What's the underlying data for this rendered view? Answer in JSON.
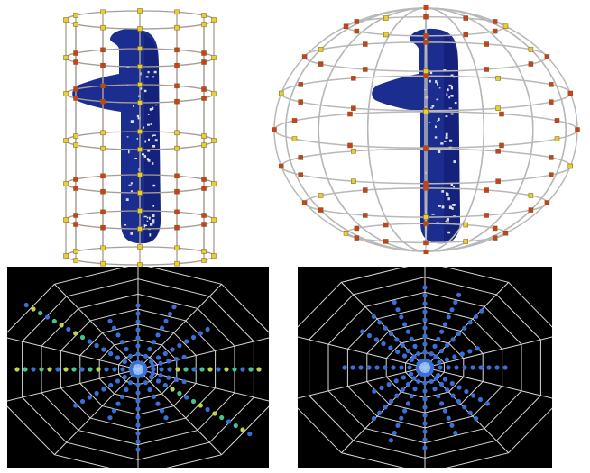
{
  "colors": {
    "figure_blue": "#1b2d8f",
    "figure_dark": "#0f1a6b",
    "cage_line": "#a89e96",
    "sphere_line": "#b8b8b8",
    "ctrl_point_yellow": "#e6cf2e",
    "ctrl_point_red": "#c8411c",
    "polar_bg": "#000000",
    "polar_grid": "#d8d8d8",
    "polar_point_blue": "#3a6fd8",
    "polar_point_green": "#45c48c",
    "polar_point_yellow": "#b8d84a"
  },
  "panels": [
    {
      "id": "cylinder-cage-figure",
      "kind": "3d-render",
      "cage": "cylinder"
    },
    {
      "id": "ellipsoid-cage-figure",
      "kind": "3d-render",
      "cage": "ellipsoid"
    },
    {
      "id": "polar-histogram-left",
      "kind": "polar-plot",
      "rings": 7,
      "spokes": 10
    },
    {
      "id": "polar-histogram-right",
      "kind": "polar-plot",
      "rings": 7,
      "spokes": 10
    }
  ]
}
